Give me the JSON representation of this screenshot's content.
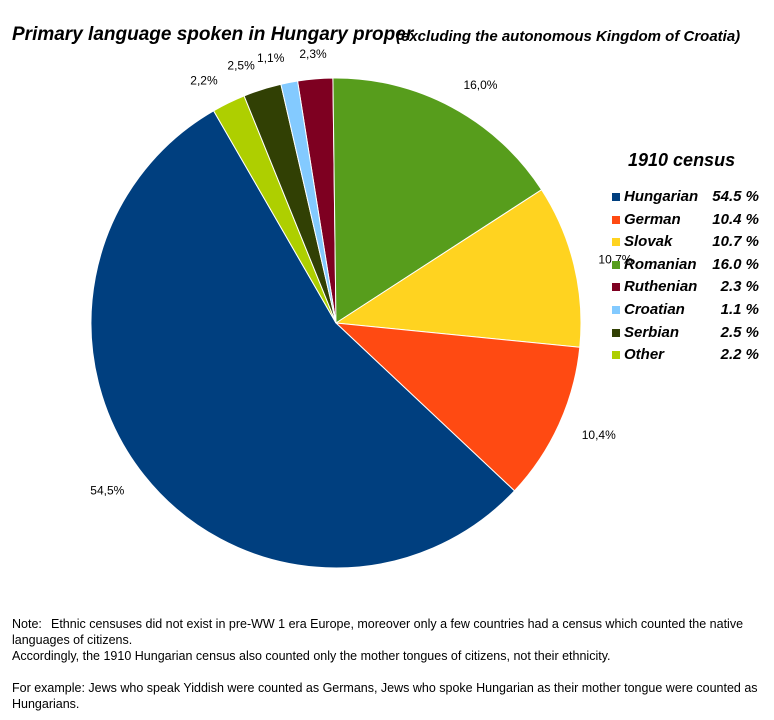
{
  "title": "Primary language spoken in Hungary proper",
  "subtitle": "(excluding the autonomous Kingdom of Croatia)",
  "chart_data": {
    "type": "pie",
    "slices": [
      {
        "name": "Hungarian",
        "value": 54.5,
        "label": "54,5%",
        "color": "#003F7F"
      },
      {
        "name": "German",
        "value": 10.4,
        "label": "10,4%",
        "color": "#FF4A12"
      },
      {
        "name": "Slovak",
        "value": 10.7,
        "label": "10,7%",
        "color": "#FFD320"
      },
      {
        "name": "Romanian",
        "value": 16.0,
        "label": "16,0%",
        "color": "#579D1C"
      },
      {
        "name": "Ruthenian",
        "value": 2.3,
        "label": "2,3%",
        "color": "#7E0021"
      },
      {
        "name": "Croatian",
        "value": 1.1,
        "label": "1,1%",
        "color": "#83CAFF"
      },
      {
        "name": "Serbian",
        "value": 2.5,
        "label": "2,5%",
        "color": "#314004"
      },
      {
        "name": "Other",
        "value": 2.2,
        "label": "2,2%",
        "color": "#AECF00"
      }
    ],
    "legend_placement": "right"
  },
  "legend": {
    "title": "1910 census",
    "items": [
      {
        "name": "Hungarian",
        "value": "54.5 %",
        "color": "#003F7F"
      },
      {
        "name": "German",
        "value": "10.4 %",
        "color": "#FF4A12"
      },
      {
        "name": "Slovak",
        "value": "10.7 %",
        "color": "#FFD320"
      },
      {
        "name": "Romanian",
        "value": "16.0 %",
        "color": "#579D1C"
      },
      {
        "name": "Ruthenian",
        "value": "2.3 %",
        "color": "#7E0021"
      },
      {
        "name": "Croatian",
        "value": "1.1 %",
        "color": "#83CAFF"
      },
      {
        "name": "Serbian",
        "value": "2.5 %",
        "color": "#314004"
      },
      {
        "name": "Other",
        "value": "2.2 %",
        "color": "#AECF00"
      }
    ]
  },
  "notes": {
    "label": "Note:",
    "line1": "Ethnic censuses did not exist in pre-WW 1  era Europe, moreover only a few countries had a census which counted the native languages of citizens.",
    "line2": "Accordingly, the 1910 Hungarian census also counted only the mother tongues of citizens, not their ethnicity.",
    "line3": "For example: Jews who speak Yiddish were counted as Germans, Jews who spoke Hungarian as their mother tongue were counted as Hungarians."
  }
}
